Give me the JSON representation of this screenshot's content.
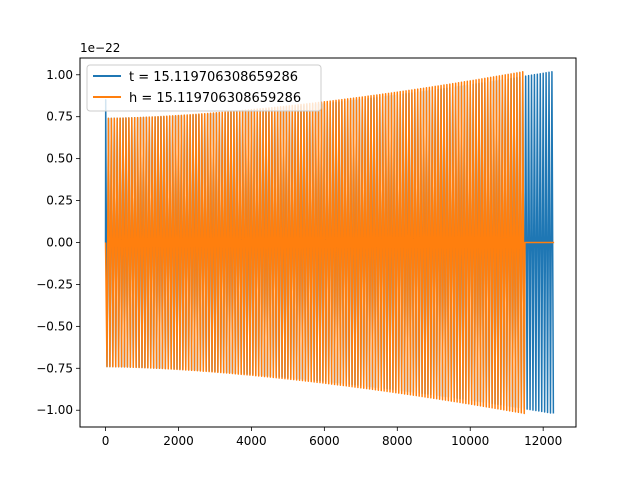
{
  "chart_data": {
    "type": "line",
    "title": "",
    "xlabel": "",
    "ylabel": "",
    "offset_text": "1e−22",
    "xlim": [
      -700,
      12900
    ],
    "ylim": [
      -1.1,
      1.1
    ],
    "x_ticks": [
      0,
      2000,
      4000,
      6000,
      8000,
      10000,
      12000
    ],
    "x_tick_labels": [
      "0",
      "2000",
      "4000",
      "6000",
      "8000",
      "10000",
      "12000"
    ],
    "y_ticks": [
      1.0,
      0.75,
      0.5,
      0.25,
      0.0,
      -0.25,
      -0.5,
      -0.75,
      -1.0
    ],
    "y_tick_labels": [
      "1.00",
      "0.75",
      "0.50",
      "0.25",
      "0.00",
      "−0.25",
      "−0.50",
      "−0.75",
      "−1.00"
    ],
    "grid": false,
    "legend_position": "top-left",
    "series": [
      {
        "name": "t = 15.119706308659286",
        "color": "#1f77b4",
        "description_points": {
          "x_start": 0,
          "x_end": 12300,
          "amp_start": 0.74,
          "amp_end": 1.02,
          "initial_spike": 0.85,
          "oscillation_period": 80
        }
      },
      {
        "name": "h = 15.119706308659286",
        "color": "#ff7f0e",
        "description_points": {
          "x_start": 0,
          "x_end": 11500,
          "amp_start": 0.74,
          "amp_end": 1.02,
          "flat_after": 11500,
          "flat_until": 12300,
          "oscillation_period": 80
        }
      }
    ]
  }
}
